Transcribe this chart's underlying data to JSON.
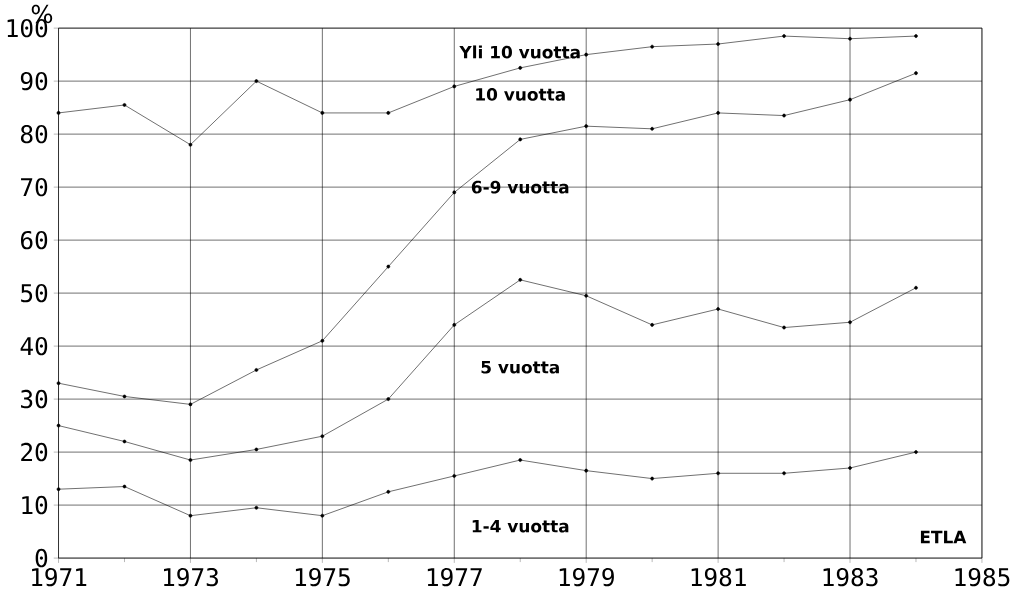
{
  "chart_data": {
    "type": "line",
    "ylabel": "%",
    "x": [
      1971,
      1972,
      1973,
      1974,
      1975,
      1976,
      1977,
      1978,
      1979,
      1980,
      1981,
      1982,
      1983,
      1984
    ],
    "series": [
      {
        "color": "#000000",
        "values": [
          84,
          85.5,
          78,
          90,
          84,
          84,
          89,
          92.5,
          95,
          96.5,
          97,
          98.5,
          98,
          98.5
        ]
      },
      {
        "color": "#000000",
        "values": [
          33,
          30.5,
          29,
          35.5,
          41,
          55,
          69,
          79,
          81.5,
          81,
          84,
          83.5,
          86.5,
          91.5
        ]
      },
      {
        "color": "#000000",
        "values": [
          25,
          22,
          18.5,
          20.5,
          23,
          30,
          44,
          52.5,
          49.5,
          44,
          47,
          43.5,
          44.5,
          51
        ]
      },
      {
        "color": "#000000",
        "values": [
          13,
          13.5,
          8,
          9.5,
          8,
          12.5,
          15.5,
          18.5,
          16.5,
          15,
          16,
          16,
          17,
          20
        ]
      }
    ],
    "xlim": [
      1971,
      1985
    ],
    "ylim": [
      0,
      100
    ],
    "xticks": [
      1971,
      {
        "value": 1972,
        "label": null
      },
      1973,
      {
        "value": 1974,
        "label": null
      },
      1975,
      {
        "value": 1976,
        "label": null
      },
      1977,
      {
        "value": 1978,
        "label": null
      },
      1979,
      {
        "value": 1980,
        "label": null
      },
      1981,
      {
        "value": 1982,
        "label": null
      },
      1983,
      {
        "value": 1984,
        "label": null
      },
      1985
    ],
    "yticks": [
      0,
      10,
      20,
      30,
      40,
      50,
      60,
      70,
      80,
      90,
      100
    ],
    "grid": true,
    "marker": "circle",
    "line_style": "solid",
    "annotations": [
      "Yli 10 vuotta",
      "10 vuotta",
      "6-9 vuotta",
      "5 vuotta",
      "1-4 vuotta",
      "ETLA"
    ]
  }
}
